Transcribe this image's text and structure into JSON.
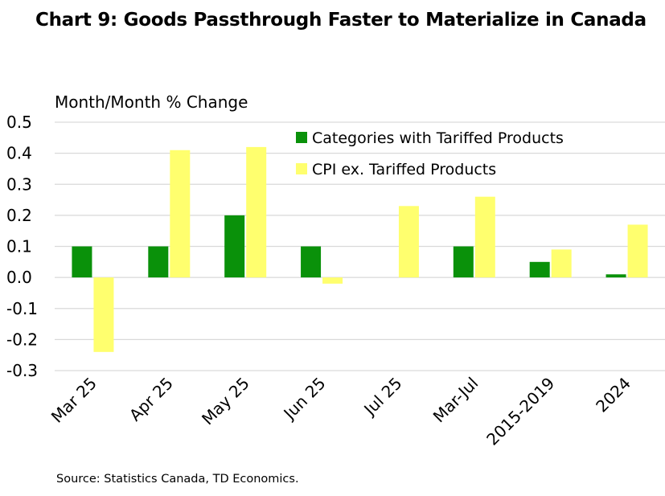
{
  "title": "Chart 9: Goods Passthrough Faster to Materialize in Canada",
  "source": "Source: Statistics Canada, TD Economics.",
  "colors": {
    "series1": "#0a910a",
    "series2": "#ffff6e",
    "grid": "#d9d9d9"
  },
  "chart_data": {
    "type": "bar",
    "title": "Chart 9: Goods Passthrough Faster to Materialize in Canada",
    "ylabel": "Month/Month % Change",
    "xlabel": "",
    "ylim": [
      -0.3,
      0.5
    ],
    "yticks": [
      0.5,
      0.4,
      0.3,
      0.2,
      0.1,
      0.0,
      -0.1,
      -0.2,
      -0.3
    ],
    "ytick_labels": [
      "0.5",
      "0.4",
      "0.3",
      "0.2",
      "0.1",
      "0.0",
      "-0.1",
      "-0.2",
      "-0.3"
    ],
    "grid": true,
    "legend_position": "top-right",
    "categories": [
      "Mar 25",
      "Apr 25",
      "May 25",
      "Jun 25",
      "Jul 25",
      "Mar-Jul",
      "2015-2019",
      "2024"
    ],
    "series": [
      {
        "name": "Categories with Tariffed Products",
        "values": [
          0.1,
          0.1,
          0.2,
          0.1,
          0.0,
          0.1,
          0.05,
          0.01
        ]
      },
      {
        "name": "CPI ex. Tariffed Products",
        "values": [
          -0.24,
          0.41,
          0.42,
          -0.02,
          0.23,
          0.26,
          0.09,
          0.17
        ]
      }
    ]
  }
}
